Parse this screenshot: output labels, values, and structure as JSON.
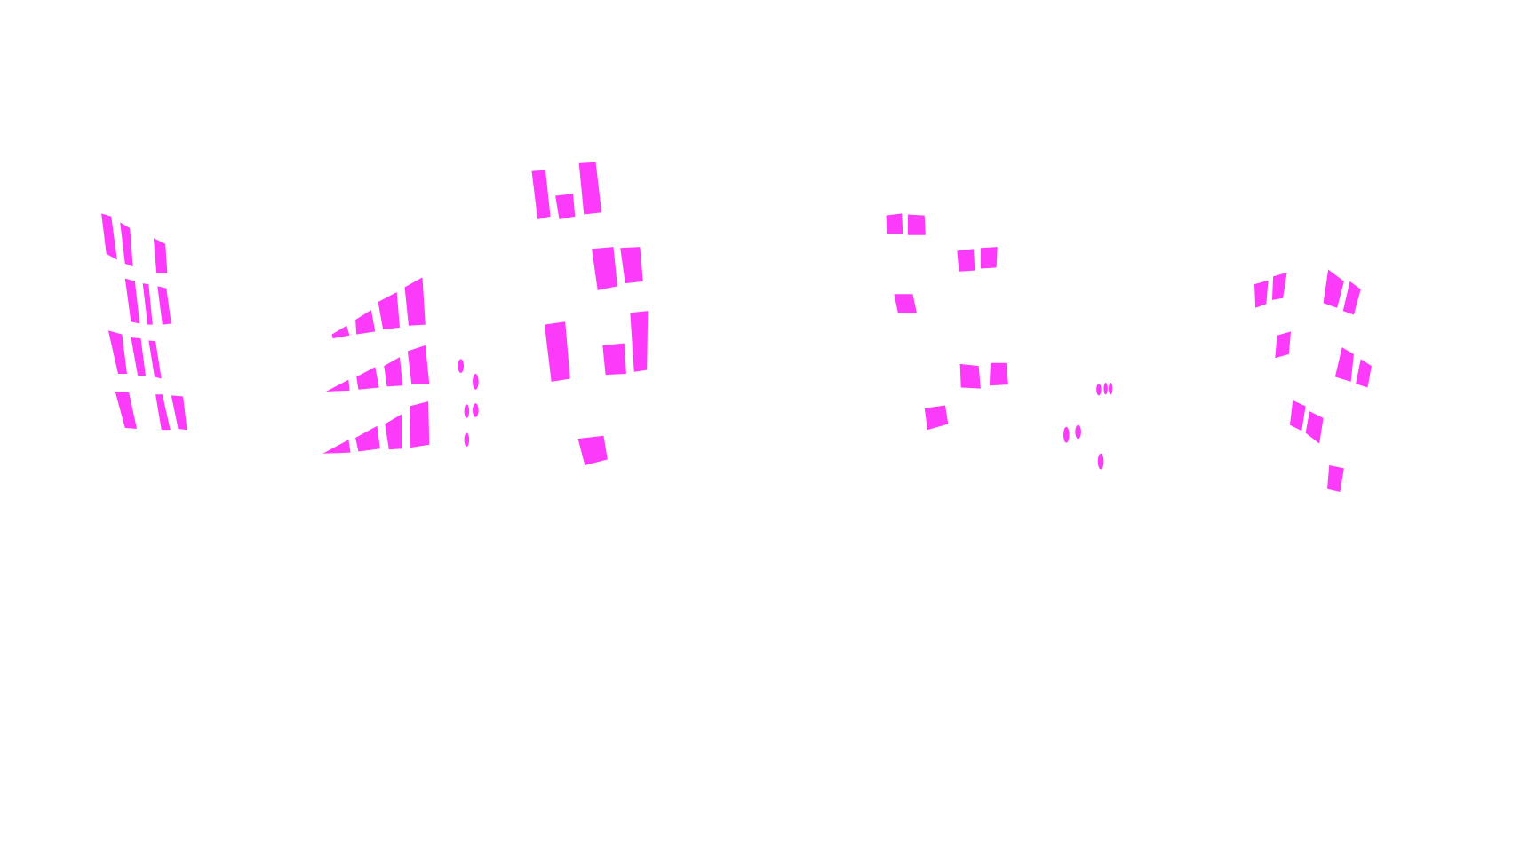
{
  "background_color": "#ffffff",
  "mask_color": "#fb3bf9"
}
